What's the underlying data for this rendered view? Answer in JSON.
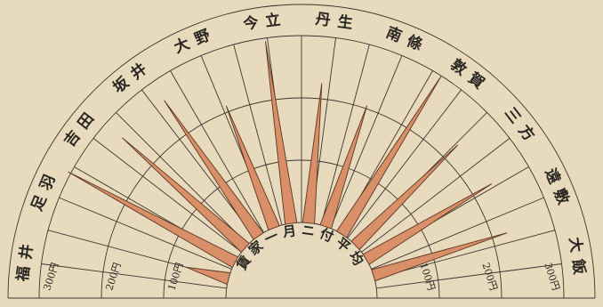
{
  "chart_data": {
    "type": "polar-spike",
    "hub_text": "賃家一月ニ付平均",
    "categories": [
      "福井",
      "足羽",
      "吉田",
      "坂井",
      "大野",
      "今立",
      "丹生",
      "南條",
      "敦賀",
      "三方",
      "遠敷",
      "大飯"
    ],
    "values": [
      70,
      305,
      265,
      265,
      210,
      295,
      225,
      205,
      300,
      230,
      235,
      225
    ],
    "color": "#d98f68",
    "rlim": [
      0,
      300
    ],
    "rticks": [
      {
        "value": 100,
        "label": "100円"
      },
      {
        "value": 200,
        "label": "200円"
      },
      {
        "value": 300,
        "label": "300円"
      }
    ]
  }
}
